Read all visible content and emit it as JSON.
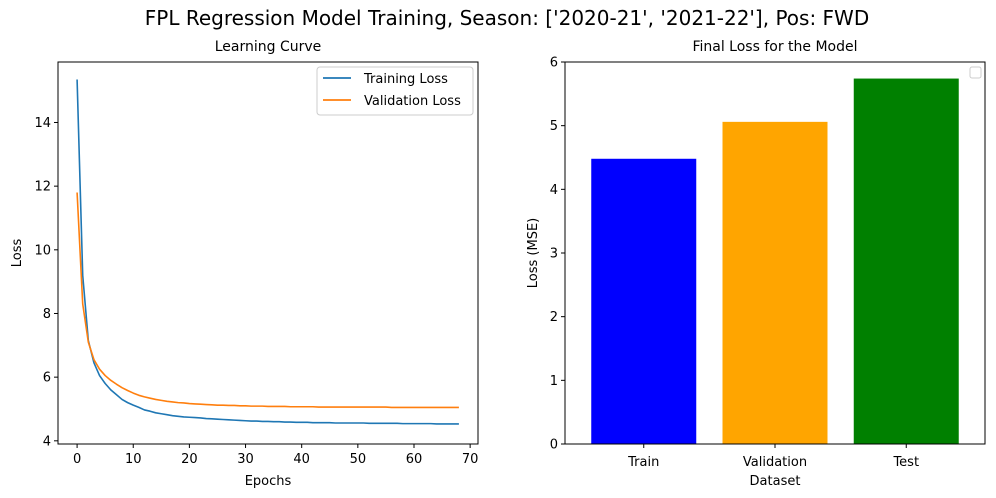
{
  "suptitle": "FPL Regression Model Training, Season: ['2020-21', '2021-22'], Pos: FWD",
  "chart_data": [
    {
      "type": "line",
      "title": "Learning Curve",
      "xlabel": "Epochs",
      "ylabel": "Loss",
      "xlim": [
        -3.4,
        71.4
      ],
      "ylim": [
        3.9,
        15.9
      ],
      "xticks": [
        0,
        10,
        20,
        30,
        40,
        50,
        60,
        70
      ],
      "yticks": [
        4,
        6,
        8,
        10,
        12,
        14
      ],
      "legend": "top-right",
      "grid": false,
      "x": [
        0,
        1,
        2,
        3,
        4,
        5,
        6,
        7,
        8,
        9,
        10,
        11,
        12,
        13,
        14,
        15,
        16,
        17,
        18,
        19,
        20,
        21,
        22,
        23,
        24,
        25,
        26,
        27,
        28,
        29,
        30,
        31,
        32,
        33,
        34,
        35,
        36,
        37,
        38,
        39,
        40,
        41,
        42,
        43,
        44,
        45,
        46,
        47,
        48,
        49,
        50,
        51,
        52,
        53,
        54,
        55,
        56,
        57,
        58,
        59,
        60,
        61,
        62,
        63,
        64,
        65,
        66,
        67,
        68
      ],
      "series": [
        {
          "name": "Training Loss",
          "color": "#1f77b4",
          "values": [
            15.35,
            9.2,
            7.15,
            6.45,
            6.05,
            5.8,
            5.6,
            5.45,
            5.3,
            5.2,
            5.12,
            5.05,
            4.97,
            4.93,
            4.88,
            4.85,
            4.82,
            4.79,
            4.77,
            4.75,
            4.74,
            4.73,
            4.72,
            4.7,
            4.69,
            4.68,
            4.67,
            4.66,
            4.65,
            4.64,
            4.63,
            4.62,
            4.62,
            4.61,
            4.61,
            4.6,
            4.6,
            4.59,
            4.59,
            4.58,
            4.58,
            4.58,
            4.57,
            4.57,
            4.57,
            4.57,
            4.56,
            4.56,
            4.56,
            4.56,
            4.56,
            4.56,
            4.55,
            4.55,
            4.55,
            4.55,
            4.55,
            4.55,
            4.54,
            4.54,
            4.54,
            4.54,
            4.54,
            4.54,
            4.53,
            4.53,
            4.53,
            4.53,
            4.53
          ]
        },
        {
          "name": "Validation Loss",
          "color": "#ff7f0e",
          "values": [
            11.8,
            8.3,
            7.1,
            6.55,
            6.25,
            6.05,
            5.9,
            5.78,
            5.67,
            5.58,
            5.5,
            5.43,
            5.38,
            5.34,
            5.3,
            5.27,
            5.24,
            5.22,
            5.2,
            5.19,
            5.17,
            5.16,
            5.15,
            5.14,
            5.13,
            5.12,
            5.12,
            5.11,
            5.11,
            5.1,
            5.1,
            5.09,
            5.09,
            5.09,
            5.08,
            5.08,
            5.08,
            5.08,
            5.07,
            5.07,
            5.07,
            5.07,
            5.07,
            5.06,
            5.06,
            5.06,
            5.06,
            5.06,
            5.06,
            5.06,
            5.06,
            5.06,
            5.06,
            5.06,
            5.06,
            5.06,
            5.05,
            5.05,
            5.05,
            5.05,
            5.05,
            5.05,
            5.05,
            5.05,
            5.05,
            5.05,
            5.05,
            5.05,
            5.05
          ]
        }
      ]
    },
    {
      "type": "bar",
      "title": "Final Loss for the Model",
      "xlabel": "Dataset",
      "ylabel": "Loss (MSE)",
      "ylim": [
        0,
        6.0
      ],
      "yticks": [
        0,
        1,
        2,
        3,
        4,
        5,
        6
      ],
      "legend": "top-right",
      "grid": false,
      "categories": [
        "Train",
        "Validation",
        "Test"
      ],
      "values": [
        4.48,
        5.06,
        5.74
      ],
      "colors": [
        "#0000ff",
        "#ffa500",
        "#008000"
      ]
    }
  ]
}
